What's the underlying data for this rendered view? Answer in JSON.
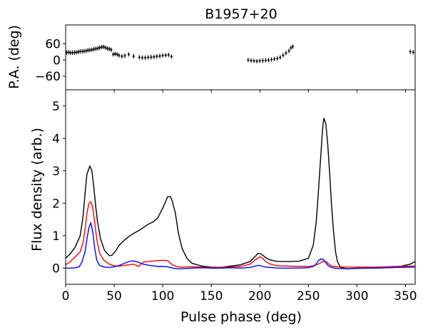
{
  "chart_data": [
    {
      "type": "scatter",
      "panel": "top",
      "title": "B1957+20",
      "xlabel": "",
      "ylabel": "P.A. (deg)",
      "xlim": [
        0,
        360
      ],
      "ylim": [
        -110,
        130
      ],
      "yticks": [
        -60,
        0,
        60
      ],
      "ytick_labels": [
        "−60",
        "0",
        "60"
      ],
      "color": "#000000",
      "series": [
        {
          "x": [
            1,
            3,
            5,
            7,
            9,
            11,
            13,
            15,
            17,
            19,
            21,
            23,
            25,
            27,
            29,
            31,
            33,
            35,
            37,
            39,
            41,
            43,
            45,
            47,
            49,
            51,
            53,
            55,
            58,
            61,
            65,
            70,
            76,
            79,
            82,
            85,
            88,
            91,
            94,
            97,
            100,
            103,
            106,
            109,
            188,
            191,
            194,
            197,
            200,
            203,
            206,
            209,
            212,
            215,
            218,
            221,
            224,
            227,
            230,
            232,
            234,
            355,
            358
          ],
          "y": [
            28,
            29,
            27,
            27,
            28,
            29,
            30,
            32,
            32,
            33,
            34,
            36,
            37,
            38,
            40,
            42,
            43,
            46,
            48,
            49,
            46,
            43,
            41,
            38,
            21,
            23,
            21,
            17,
            14,
            16,
            21,
            14,
            10,
            9,
            9,
            10,
            11,
            12,
            14,
            15,
            17,
            18,
            19,
            13,
            0,
            -2,
            -3,
            -4,
            -3,
            -2,
            -1,
            0,
            2,
            4,
            6,
            10,
            18,
            26,
            34,
            45,
            50,
            31,
            29
          ]
        }
      ]
    },
    {
      "type": "line",
      "panel": "bottom",
      "xlabel": "Pulse phase (deg)",
      "ylabel": "Flux density (arb.)",
      "xlim": [
        0,
        360
      ],
      "ylim": [
        -0.5,
        5.5
      ],
      "xticks": [
        0,
        50,
        100,
        150,
        200,
        250,
        300,
        350
      ],
      "yticks": [
        0,
        1,
        2,
        3,
        4,
        5
      ],
      "series": [
        {
          "color": "#000000",
          "x": [
            0,
            5,
            10,
            15,
            18,
            20,
            22,
            25,
            27,
            29,
            31,
            33,
            36,
            40,
            45,
            48,
            52,
            55,
            60,
            65,
            70,
            75,
            80,
            85,
            90,
            95,
            100,
            103,
            105,
            108,
            110,
            113,
            116,
            120,
            125,
            130,
            140,
            150,
            160,
            170,
            180,
            190,
            195,
            198,
            200,
            203,
            206,
            210,
            215,
            220,
            230,
            240,
            250,
            255,
            258,
            260,
            262,
            264,
            265,
            266,
            268,
            270,
            272,
            274,
            276,
            278,
            280,
            283,
            290,
            300,
            320,
            340,
            355,
            360
          ],
          "y": [
            0.3,
            0.45,
            0.65,
            1.0,
            1.6,
            2.3,
            2.9,
            3.15,
            3.0,
            2.5,
            1.9,
            1.4,
            0.9,
            0.55,
            0.38,
            0.4,
            0.55,
            0.7,
            0.85,
            0.97,
            1.07,
            1.15,
            1.25,
            1.35,
            1.42,
            1.55,
            1.85,
            2.05,
            2.2,
            2.2,
            2.05,
            1.7,
            1.1,
            0.6,
            0.3,
            0.15,
            0.06,
            0.03,
            0.02,
            0.06,
            0.1,
            0.2,
            0.35,
            0.45,
            0.45,
            0.4,
            0.32,
            0.26,
            0.22,
            0.2,
            0.2,
            0.21,
            0.3,
            0.7,
            1.4,
            2.2,
            3.1,
            4.0,
            4.4,
            4.62,
            4.45,
            3.8,
            2.9,
            1.9,
            1.1,
            0.5,
            0.2,
            0.02,
            -0.03,
            0.0,
            0.0,
            0.02,
            0.12,
            0.2
          ]
        },
        {
          "color": "#ff0000",
          "x": [
            0,
            5,
            10,
            15,
            18,
            20,
            22,
            24,
            26,
            28,
            30,
            32,
            35,
            40,
            45,
            50,
            55,
            60,
            65,
            70,
            75,
            80,
            85,
            90,
            95,
            100,
            105,
            110,
            115,
            120,
            130,
            140,
            150,
            160,
            170,
            180,
            190,
            195,
            198,
            200,
            203,
            206,
            210,
            215,
            220,
            230,
            240,
            250,
            255,
            260,
            265,
            268,
            270,
            272,
            275,
            280,
            290,
            300,
            320,
            340,
            360
          ],
          "y": [
            0.1,
            0.2,
            0.35,
            0.5,
            0.8,
            1.2,
            1.7,
            2.0,
            2.05,
            1.85,
            1.4,
            0.9,
            0.45,
            0.22,
            0.12,
            0.07,
            0.06,
            0.08,
            0.1,
            0.12,
            0.05,
            0.18,
            0.2,
            0.22,
            0.23,
            0.24,
            0.23,
            0.1,
            0.04,
            0.03,
            0.04,
            0.03,
            0.02,
            0.02,
            0.03,
            0.05,
            0.12,
            0.25,
            0.3,
            0.35,
            0.3,
            0.2,
            0.13,
            0.09,
            0.07,
            0.06,
            0.05,
            0.05,
            0.07,
            0.12,
            0.2,
            0.2,
            0.15,
            0.1,
            0.05,
            0.04,
            0.03,
            0.03,
            0.03,
            0.05,
            0.06
          ]
        },
        {
          "color": "#0000ff",
          "x": [
            0,
            5,
            10,
            14,
            17,
            20,
            22,
            24,
            26,
            28,
            30,
            32,
            35,
            40,
            45,
            50,
            55,
            60,
            65,
            70,
            75,
            80,
            85,
            90,
            95,
            100,
            105,
            110,
            115,
            120,
            130,
            140,
            150,
            160,
            170,
            180,
            190,
            195,
            198,
            200,
            203,
            206,
            210,
            220,
            230,
            240,
            250,
            255,
            258,
            260,
            263,
            265,
            268,
            270,
            273,
            276,
            280,
            290,
            300,
            320,
            340,
            360
          ],
          "y": [
            0.0,
            0.0,
            0.01,
            0.04,
            0.2,
            0.5,
            0.9,
            1.25,
            1.4,
            1.1,
            0.6,
            0.25,
            0.08,
            0.03,
            0.02,
            0.04,
            0.08,
            0.14,
            0.2,
            0.22,
            0.18,
            0.12,
            0.09,
            0.07,
            0.05,
            0.05,
            0.04,
            0.0,
            -0.02,
            -0.02,
            0.0,
            0.01,
            0.0,
            0.0,
            0.01,
            0.0,
            0.02,
            0.06,
            0.08,
            0.08,
            0.05,
            0.03,
            0.02,
            0.0,
            0.0,
            0.0,
            0.01,
            0.05,
            0.12,
            0.22,
            0.28,
            0.27,
            0.17,
            0.08,
            0.03,
            0.0,
            -0.01,
            -0.02,
            -0.01,
            0.0,
            0.02,
            0.03
          ]
        }
      ]
    }
  ]
}
